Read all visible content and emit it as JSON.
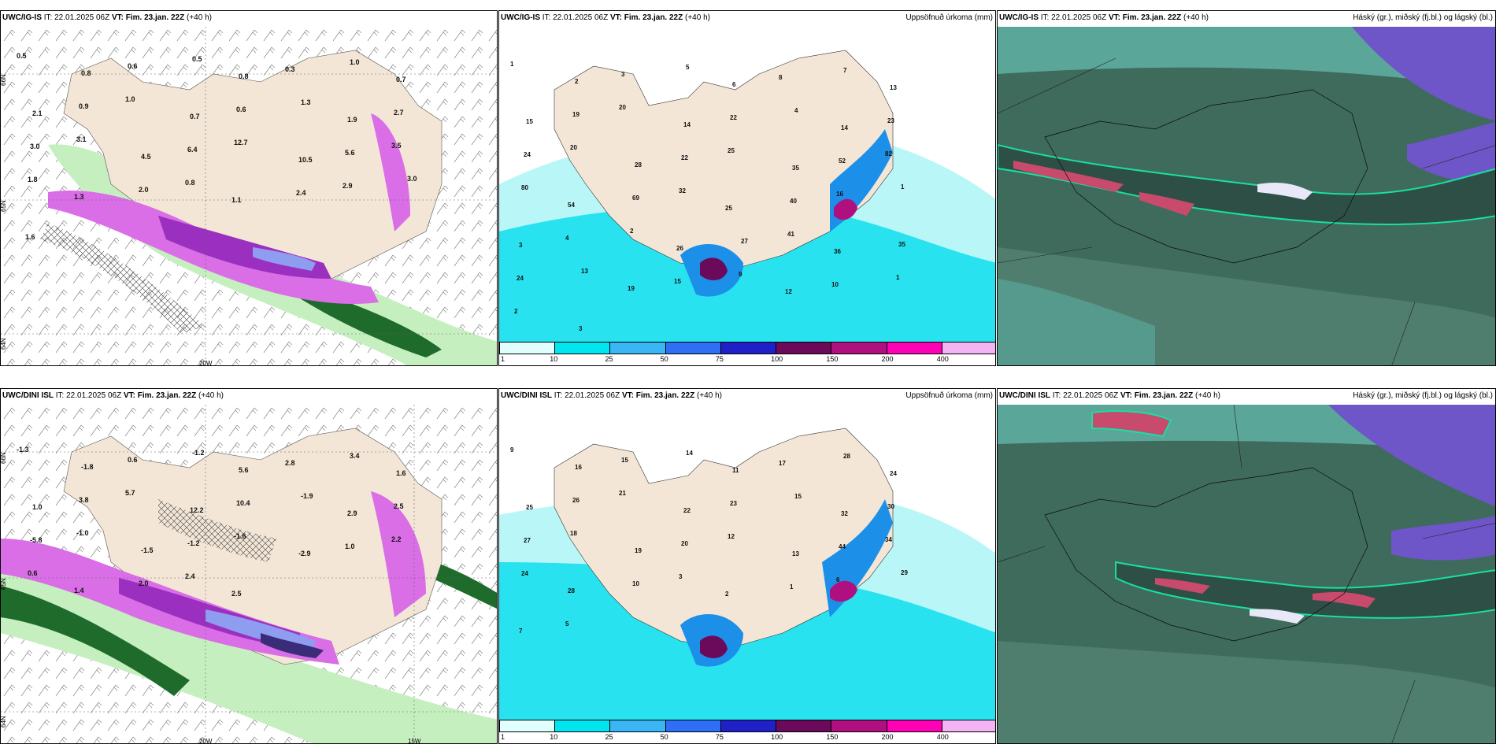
{
  "panels": {
    "top_left": {
      "model": "UWC/IG-IS",
      "it_label": "IT:",
      "it_value": "22.01.2025 06Z",
      "vt_label": "VT:",
      "vt_value": "Fim. 23.jan. 22Z",
      "lead": "(+40 h)",
      "right_title": "",
      "grid_labels": [
        "66N",
        "65N",
        "64N",
        "20W"
      ],
      "values": [
        "0.5",
        "0.8",
        "0.6",
        "0.5",
        "0.8",
        "0.3",
        "1.0",
        "0.7",
        "2.1",
        "0.9",
        "1.0",
        "0.7",
        "0.6",
        "1.3",
        "1.9",
        "2.7",
        "3.0",
        "3.1",
        "4.5",
        "6.4",
        "12.7",
        "10.5",
        "5.6",
        "3.5",
        "1.8",
        "1.3",
        "2.0",
        "0.8",
        "1.1",
        "2.4",
        "2.9",
        "3.0",
        "1.6"
      ]
    },
    "top_mid": {
      "model": "UWC/IG-IS",
      "it_label": "IT:",
      "it_value": "22.01.2025 06Z",
      "vt_label": "VT:",
      "vt_value": "Fim. 23.jan. 22Z",
      "lead": "(+40 h)",
      "right_title": "Uppsöfnuð úrkoma (mm)",
      "values": [
        "1",
        "2",
        "3",
        "5",
        "6",
        "8",
        "7",
        "13",
        "15",
        "19",
        "20",
        "14",
        "22",
        "4",
        "14",
        "23",
        "24",
        "20",
        "28",
        "22",
        "25",
        "35",
        "52",
        "82",
        "80",
        "54",
        "69",
        "32",
        "25",
        "40",
        "16",
        "1",
        "3",
        "4",
        "2",
        "26",
        "27",
        "41",
        "36",
        "35",
        "24",
        "13",
        "19",
        "15",
        "9",
        "12",
        "10",
        "1",
        "2",
        "3"
      ]
    },
    "top_right": {
      "model": "UWC/IG-IS",
      "it_label": "IT:",
      "it_value": "22.01.2025 06Z",
      "vt_label": "VT:",
      "vt_value": "Fim. 23.jan. 22Z",
      "lead": "(+40 h)",
      "right_title": "Háský (gr.), miðský (fj.bl.) og lágský (bl.)"
    },
    "bottom_left": {
      "model": "UWC/DINI ISL",
      "it_label": "IT:",
      "it_value": "22.01.2025 06Z",
      "vt_label": "VT:",
      "vt_value": "Fim. 23.jan. 22Z",
      "lead": "(+40 h)",
      "right_title": "",
      "grid_labels": [
        "66N",
        "65N",
        "64N",
        "20W",
        "15W"
      ],
      "values": [
        "-1.3",
        "-1.8",
        "0.6",
        "-1.2",
        "5.6",
        "2.8",
        "3.4",
        "1.6",
        "1.0",
        "3.8",
        "5.7",
        "12.2",
        "10.4",
        "-1.9",
        "2.9",
        "2.5",
        "-5.8",
        "-1.0",
        "-1.5",
        "-1.2",
        "-1.6",
        "-2.9",
        "1.0",
        "2.2",
        "0.6",
        "1.4",
        "2.0",
        "2.4",
        "2.5"
      ]
    },
    "bottom_mid": {
      "model": "UWC/DINI ISL",
      "it_label": "IT:",
      "it_value": "22.01.2025 06Z",
      "vt_label": "VT:",
      "vt_value": "Fim. 23.jan. 22Z",
      "lead": "(+40 h)",
      "right_title": "Uppsöfnuð úrkoma (mm)",
      "values": [
        "9",
        "16",
        "15",
        "14",
        "11",
        "17",
        "28",
        "24",
        "25",
        "26",
        "21",
        "22",
        "23",
        "15",
        "32",
        "30",
        "27",
        "18",
        "19",
        "20",
        "12",
        "13",
        "44",
        "34",
        "24",
        "28",
        "10",
        "3",
        "2",
        "1",
        "6",
        "29",
        "7",
        "5"
      ]
    },
    "bottom_right": {
      "model": "UWC/DINI ISL",
      "it_label": "IT:",
      "it_value": "22.01.2025 06Z",
      "vt_label": "VT:",
      "vt_value": "Fim. 23.jan. 22Z",
      "lead": "(+40 h)",
      "right_title": "Háský (gr.), miðský (fj.bl.) og lágský (bl.)"
    }
  },
  "colorbar": {
    "labels": [
      "1",
      "10",
      "25",
      "50",
      "75",
      "100",
      "150",
      "200",
      "400"
    ],
    "colors": [
      "#e0ffff",
      "#00e5ee",
      "#3bb6f5",
      "#2f6ff5",
      "#2020c8",
      "#6b0a5a",
      "#b0107f",
      "#ff00b4",
      "#f4b4f4"
    ]
  },
  "palette": {
    "land": "#f3e6d6",
    "precip_light": "#b8f6f8",
    "precip_mid": "#28e3ef",
    "precip_heavy": "#1c8fe8",
    "green_light": "#c6efc0",
    "green_dark": "#1f6b2c",
    "magenta": "#d96ee6",
    "purple": "#9b2fbf",
    "cloud_dark": "#3f6b5c",
    "cloud_teal": "#5aa79a",
    "cloud_violet": "#6e55c8"
  }
}
